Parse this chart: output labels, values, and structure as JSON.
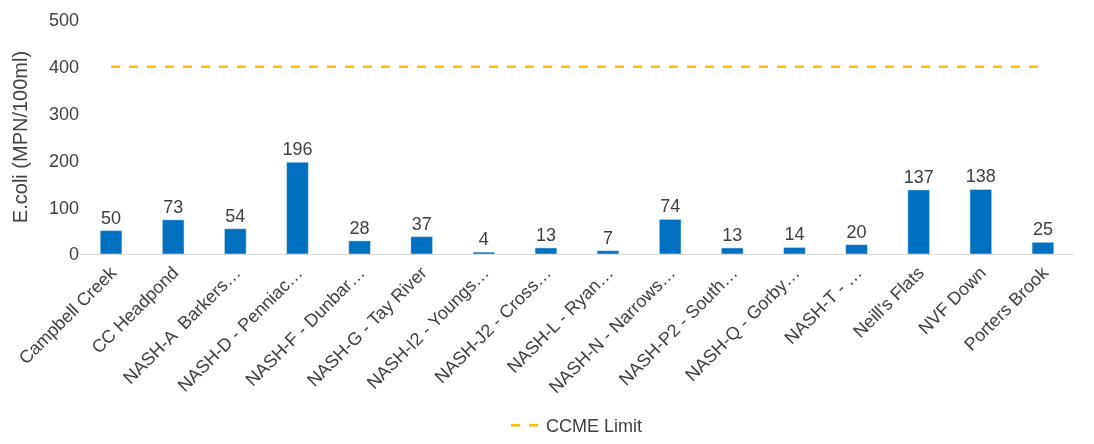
{
  "chart_data": {
    "type": "bar",
    "ylabel": "E.coli (MPN/100ml)",
    "categories": [
      "Campbell Creek",
      "CC Headpond",
      "NASH-A  Barkers…",
      "NASH-D - Penniac…",
      "NASH-F - Dunbar…",
      "NASH-G - Tay River",
      "NASH-I2 - Youngs…",
      "NASH-J2 - Cross…",
      "NASH-L - Ryan…",
      "NASH-N - Narrows…",
      "NASH-P2 - South…",
      "NASH-Q - Gorby…",
      "NASH-T - …",
      "Neill's Flats",
      "NVF Down",
      "Porters Brook"
    ],
    "series": [
      {
        "color": "#0070c0",
        "values": [
          50,
          73,
          54,
          196,
          28,
          37,
          4,
          13,
          7,
          74,
          13,
          14,
          20,
          137,
          138,
          25
        ],
        "value_labels": [
          "50",
          "73",
          "54",
          "196",
          "28",
          "37",
          "4",
          "13",
          "7",
          "74",
          "13",
          "14",
          "20",
          "137",
          "138",
          "25"
        ]
      },
      {
        "type": "line",
        "name": "CCME Limit",
        "color": "#ffc000",
        "line_style": "dashed",
        "values": [
          400,
          400,
          400,
          400,
          400,
          400,
          400,
          400,
          400,
          400,
          400,
          400,
          400,
          400,
          400,
          400
        ]
      }
    ],
    "ylim": [
      0,
      500
    ],
    "yticks": [
      0,
      100,
      200,
      300,
      400,
      500
    ],
    "legend": "bottom",
    "marker": "none"
  }
}
